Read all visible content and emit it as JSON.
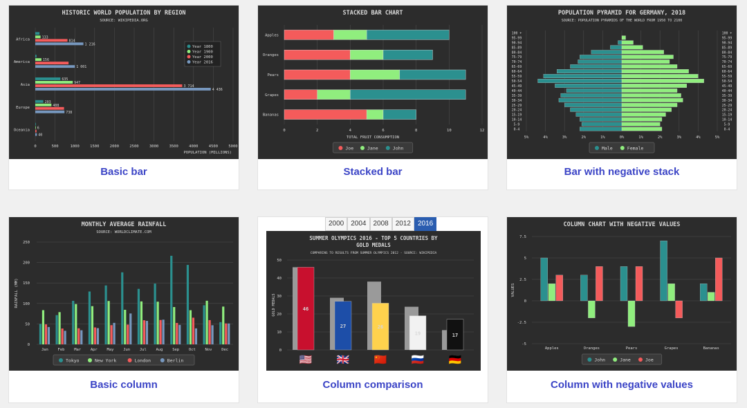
{
  "cards": [
    {
      "caption": "Basic bar"
    },
    {
      "caption": "Stacked bar"
    },
    {
      "caption": "Bar with negative stack"
    },
    {
      "caption": "Basic column"
    },
    {
      "caption": "Column comparison"
    },
    {
      "caption": "Column with negative values"
    }
  ],
  "comparison_tabs": [
    "2000",
    "2004",
    "2008",
    "2012",
    "2016"
  ],
  "comparison_active_tab": "2016",
  "colors": {
    "caption": "#3b44c6",
    "panel": "#2c2c2c",
    "teal": "#2b908f",
    "green": "#90ee7e",
    "red": "#f45b5b",
    "blue": "#7798bf",
    "grid": "#4a4a4a",
    "tab_active": "#2a5db0"
  },
  "chart_data": [
    {
      "type": "bar",
      "title": "HISTORIC WORLD POPULATION BY REGION",
      "subtitle": "SOURCE: WIKIPEDIA.ORG",
      "categories": [
        "Africa",
        "America",
        "Asia",
        "Europe",
        "Oceania"
      ],
      "series": [
        {
          "name": "Year 1800",
          "values": [
            107,
            31,
            635,
            203,
            2
          ]
        },
        {
          "name": "Year 1900",
          "values": [
            133,
            156,
            947,
            408,
            6
          ]
        },
        {
          "name": "Year 2000",
          "values": [
            814,
            841,
            3714,
            727,
            31
          ]
        },
        {
          "name": "Year 2016",
          "values": [
            1216,
            1001,
            4436,
            738,
            40
          ]
        }
      ],
      "value_labels": [
        [
          "",
          "133",
          "814",
          "1 216"
        ],
        [
          "",
          "156",
          "",
          "1 001"
        ],
        [
          "635",
          "947",
          "3 714",
          "4 436"
        ],
        [
          "203",
          "408",
          "",
          "738"
        ],
        [
          "",
          "6",
          "",
          "40"
        ]
      ],
      "xticks": [
        "0",
        "500",
        "1000",
        "1500",
        "2000",
        "2500",
        "3000",
        "3500",
        "4000",
        "4500",
        "5000"
      ],
      "xlabel": "POPULATION (MILLIONS)",
      "xlim": [
        0,
        5000
      ]
    },
    {
      "type": "bar",
      "stacked": true,
      "title": "STACKED BAR CHART",
      "categories": [
        "Apples",
        "Oranges",
        "Pears",
        "Grapes",
        "Bananas"
      ],
      "series": [
        {
          "name": "Joe",
          "values": [
            3,
            4,
            4,
            2,
            5
          ]
        },
        {
          "name": "Jane",
          "values": [
            2,
            2,
            3,
            2,
            1
          ]
        },
        {
          "name": "John",
          "values": [
            5,
            3,
            4,
            7,
            2
          ]
        }
      ],
      "xticks": [
        "0",
        "2",
        "4",
        "6",
        "8",
        "10",
        "12"
      ],
      "xlabel": "TOTAL FRUIT CONSUMPTION",
      "xlim": [
        0,
        12
      ]
    },
    {
      "type": "bar",
      "stacked": true,
      "title": "POPULATION PYRAMID FOR GERMANY, 2018",
      "subtitle": "SOURCE: POPULATION PYRAMIDS OF THE WORLD FROM 1950 TO 2100",
      "categories": [
        "0-4",
        "5-9",
        "10-14",
        "15-19",
        "20-24",
        "25-29",
        "30-34",
        "35-39",
        "40-44",
        "45-49",
        "50-54",
        "55-59",
        "60-64",
        "65-69",
        "70-74",
        "75-79",
        "80-84",
        "85-89",
        "90-94",
        "95-99",
        "100 +"
      ],
      "series": [
        {
          "name": "Male",
          "values": [
            -2.2,
            -2.1,
            -2.2,
            -2.4,
            -2.7,
            -3.0,
            -3.3,
            -3.2,
            -2.9,
            -3.5,
            -4.4,
            -4.1,
            -3.4,
            -2.7,
            -2.3,
            -2.2,
            -1.6,
            -0.6,
            -0.2,
            0,
            0
          ]
        },
        {
          "name": "Female",
          "values": [
            2.1,
            2.0,
            2.1,
            2.3,
            2.6,
            2.9,
            3.2,
            3.1,
            2.9,
            3.4,
            4.3,
            4.0,
            3.5,
            2.9,
            2.5,
            2.7,
            2.2,
            1.1,
            0.6,
            0.2,
            0
          ]
        }
      ],
      "xticks": [
        "5%",
        "4%",
        "3%",
        "2%",
        "1%",
        "0%",
        "1%",
        "2%",
        "3%",
        "4%",
        "5%"
      ],
      "xlim": [
        -5,
        5
      ]
    },
    {
      "type": "bar",
      "title": "MONTHLY AVERAGE RAINFALL",
      "subtitle": "SOURCE: WORLDCLIMATE.COM",
      "categories": [
        "Jan",
        "Feb",
        "Mar",
        "Apr",
        "May",
        "Jun",
        "Jul",
        "Aug",
        "Sep",
        "Oct",
        "Nov",
        "Dec"
      ],
      "series": [
        {
          "name": "Tokyo",
          "values": [
            49.9,
            71.5,
            106.4,
            129.2,
            144.0,
            176.0,
            135.6,
            148.5,
            216.4,
            194.1,
            95.6,
            54.4
          ]
        },
        {
          "name": "New York",
          "values": [
            83.6,
            78.8,
            98.5,
            93.4,
            106.0,
            84.5,
            105.0,
            104.3,
            91.2,
            83.5,
            106.6,
            92.3
          ]
        },
        {
          "name": "London",
          "values": [
            48.9,
            38.8,
            39.3,
            41.4,
            47.0,
            48.3,
            59.0,
            59.6,
            52.4,
            65.2,
            59.3,
            51.2
          ]
        },
        {
          "name": "Berlin",
          "values": [
            42.4,
            33.2,
            34.5,
            39.7,
            52.6,
            75.5,
            57.4,
            60.4,
            47.6,
            39.1,
            46.8,
            51.1
          ]
        }
      ],
      "yticks": [
        "0",
        "50",
        "100",
        "150",
        "200",
        "250"
      ],
      "ylabel": "RAINFALL (MM)",
      "ylim": [
        0,
        250
      ]
    },
    {
      "type": "bar",
      "title": "SUMMER OLYMPICS 2016 - TOP 5 COUNTRIES BY GOLD MEDALS",
      "subtitle": "COMPARING TO RESULTS FROM SUMMER OLYMPICS 2012 - SOURCE: WIKIPEDIA",
      "categories": [
        "USA",
        "UK",
        "China",
        "Russia",
        "Germany"
      ],
      "flags": [
        "🇺🇸",
        "🇬🇧",
        "🇨🇳",
        "🇷🇺",
        "🇩🇪"
      ],
      "series": [
        {
          "name": "2012",
          "values": [
            46,
            29,
            38,
            24,
            11
          ]
        },
        {
          "name": "2016",
          "values": [
            46,
            27,
            26,
            19,
            17
          ]
        }
      ],
      "value_labels": [
        "46",
        "27",
        "26",
        "19",
        "17"
      ],
      "bar_colors": [
        "#c8102e",
        "#1d4ea8",
        "#ffd24d",
        "#f2f2f2",
        "#111111"
      ],
      "label_colors": [
        "#ffffff",
        "#ffffff",
        "#333333",
        "#333333",
        "#ffffff"
      ],
      "yticks": [
        "0",
        "10",
        "20",
        "30",
        "40",
        "50"
      ],
      "ylabel": "GOLD MEDALS",
      "ylim": [
        0,
        50
      ]
    },
    {
      "type": "bar",
      "title": "COLUMN CHART WITH NEGATIVE VALUES",
      "categories": [
        "Apples",
        "Oranges",
        "Pears",
        "Grapes",
        "Bananas"
      ],
      "series": [
        {
          "name": "John",
          "values": [
            5,
            3,
            4,
            7,
            2
          ]
        },
        {
          "name": "Jane",
          "values": [
            2,
            -2,
            -3,
            2,
            1
          ]
        },
        {
          "name": "Joe",
          "values": [
            3,
            4,
            4,
            -2,
            5
          ]
        }
      ],
      "yticks": [
        "-5",
        "-2.5",
        "0",
        "2.5",
        "5",
        "7.5"
      ],
      "ylabel": "VALUES",
      "ylim": [
        -5,
        7.5
      ]
    }
  ]
}
